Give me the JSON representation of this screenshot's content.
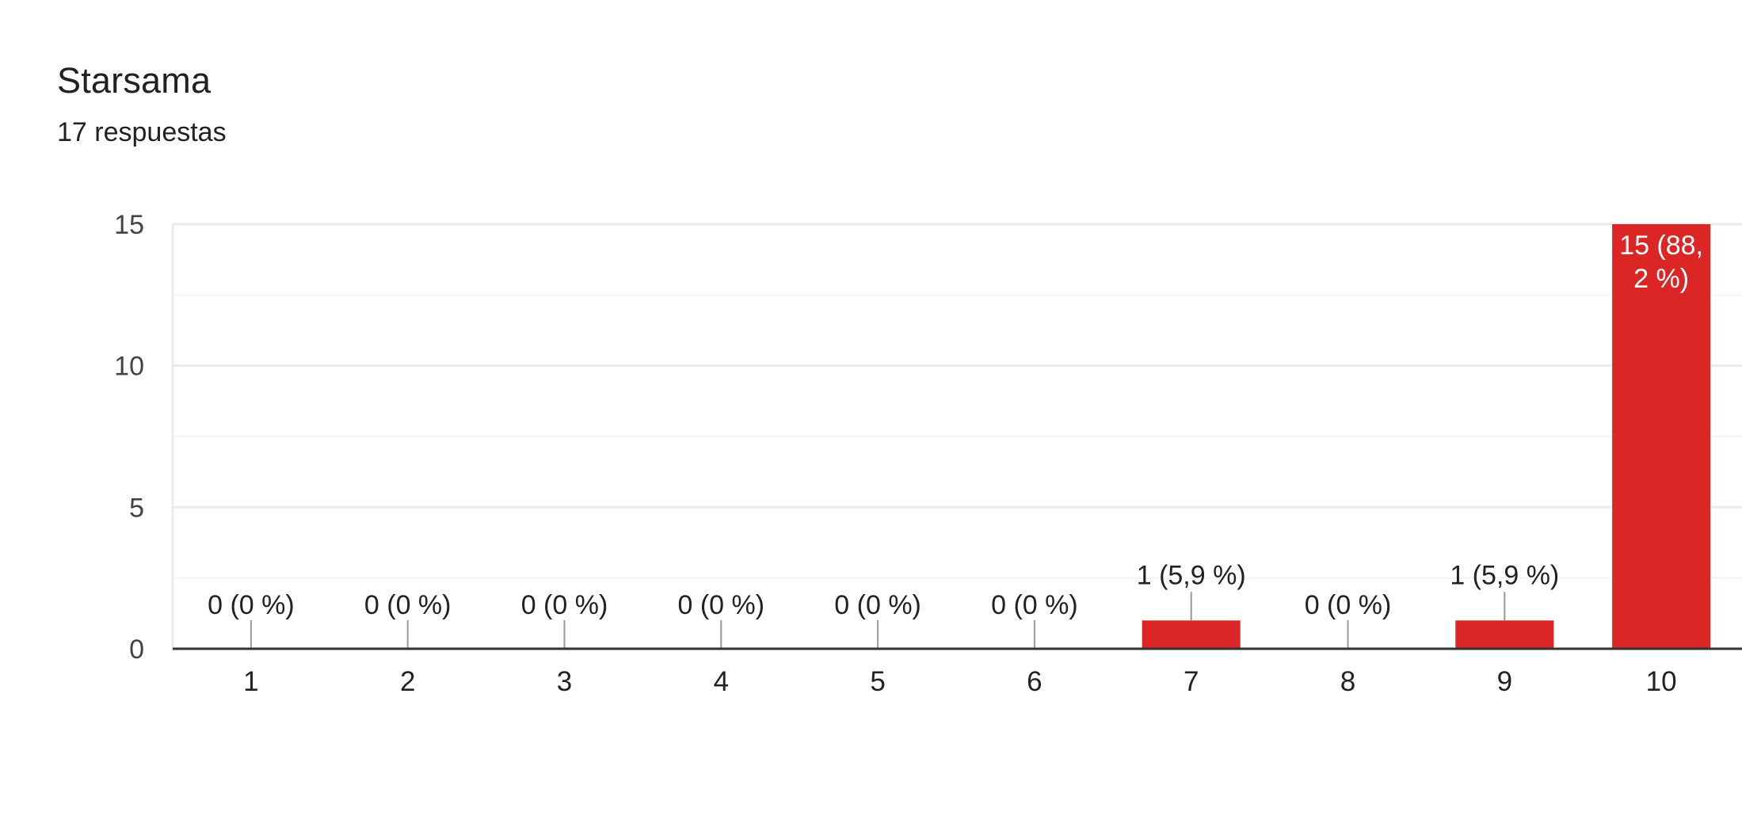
{
  "header": {
    "title": "Starsama",
    "subtitle": "17 respuestas"
  },
  "colors": {
    "bar": "#dc2626",
    "gridline": "#ebebeb",
    "minor_gridline": "#f5f5f5",
    "baseline": "#333333",
    "leader_line": "#999999"
  },
  "chart_data": {
    "type": "bar",
    "title": "Starsama",
    "subtitle": "17 respuestas",
    "xlabel": "",
    "ylabel": "",
    "categories": [
      "1",
      "2",
      "3",
      "4",
      "5",
      "6",
      "7",
      "8",
      "9",
      "10"
    ],
    "values": [
      0,
      0,
      0,
      0,
      0,
      0,
      1,
      0,
      1,
      15
    ],
    "data_labels": [
      "0 (0 %)",
      "0 (0 %)",
      "0 (0 %)",
      "0 (0 %)",
      "0 (0 %)",
      "0 (0 %)",
      "1 (5,9 %)",
      "0 (0 %)",
      "1 (5,9 %)",
      "15 (88,2 %)"
    ],
    "data_label_lines_for_inside": [
      "15 (88,",
      "2 %)"
    ],
    "y_ticks": [
      "0",
      "5",
      "10",
      "15"
    ],
    "ylim": [
      0,
      15
    ],
    "grid": true,
    "legend": "none"
  }
}
